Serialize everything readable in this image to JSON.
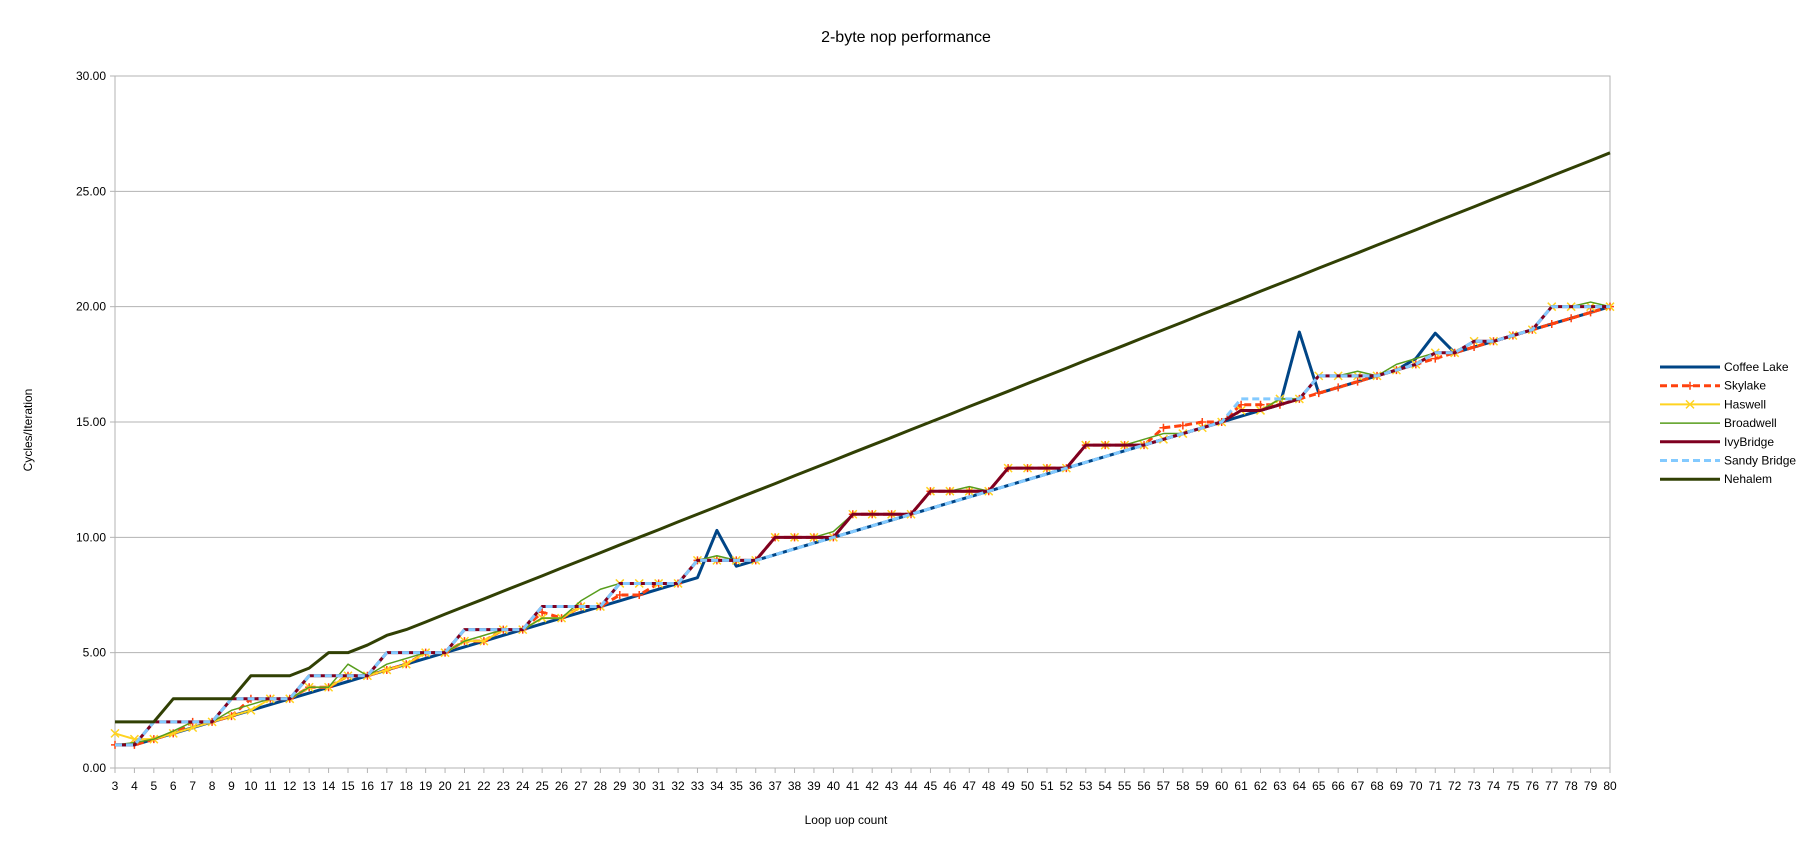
{
  "chart_data": {
    "type": "line",
    "title": "2-byte nop performance",
    "xlabel": "Loop uop count",
    "ylabel": "Cycles/Iteration",
    "ylim": [
      0,
      30
    ],
    "yticks": [
      "0.00",
      "5.00",
      "10.00",
      "15.00",
      "20.00",
      "25.00",
      "30.00"
    ],
    "x": [
      3,
      4,
      5,
      6,
      7,
      8,
      9,
      10,
      11,
      12,
      13,
      14,
      15,
      16,
      17,
      18,
      19,
      20,
      21,
      22,
      23,
      24,
      25,
      26,
      27,
      28,
      29,
      30,
      31,
      32,
      33,
      34,
      35,
      36,
      37,
      38,
      39,
      40,
      41,
      42,
      43,
      44,
      45,
      46,
      47,
      48,
      49,
      50,
      51,
      52,
      53,
      54,
      55,
      56,
      57,
      58,
      59,
      60,
      61,
      62,
      63,
      64,
      65,
      66,
      67,
      68,
      69,
      70,
      71,
      72,
      73,
      74,
      75,
      76,
      77,
      78,
      79,
      80
    ],
    "grid": "horizontal",
    "legend": "right",
    "series": [
      {
        "name": "Coffee Lake",
        "color": "#004586",
        "dash": "",
        "width": 3,
        "marker": "none",
        "values": [
          1,
          1,
          1.25,
          1.5,
          1.75,
          2,
          2.25,
          2.5,
          2.75,
          3,
          3.25,
          3.5,
          3.75,
          4,
          4.25,
          4.5,
          4.75,
          5,
          5.25,
          5.5,
          5.75,
          6,
          6.25,
          6.5,
          6.75,
          7,
          7.25,
          7.5,
          7.75,
          8,
          8.25,
          10.3,
          8.75,
          9,
          9.25,
          9.5,
          9.75,
          10,
          10.25,
          10.5,
          10.75,
          11,
          11.25,
          11.5,
          11.75,
          12,
          12.25,
          12.5,
          12.75,
          13,
          13.25,
          13.5,
          13.75,
          14,
          14.25,
          14.5,
          14.75,
          15,
          15.25,
          15.5,
          15.75,
          18.9,
          16.25,
          16.5,
          16.75,
          17,
          17.25,
          17.75,
          18.85,
          18,
          18.25,
          18.5,
          18.75,
          19,
          19.25,
          19.5,
          19.75,
          20
        ]
      },
      {
        "name": "Skylake",
        "color": "#ff420e",
        "dash": "7,4",
        "width": 3,
        "marker": "cross",
        "values": [
          1,
          1,
          1.25,
          1.5,
          2,
          2,
          2.25,
          3,
          3,
          3,
          3.5,
          3.5,
          4,
          4,
          4.25,
          4.5,
          5,
          5,
          5.5,
          5.5,
          6,
          6,
          6.75,
          6.5,
          7,
          7,
          7.5,
          7.5,
          8,
          8,
          9,
          9,
          9,
          9,
          10,
          10,
          10,
          10,
          11,
          11,
          11,
          11,
          12,
          12,
          12,
          12,
          13,
          13,
          13,
          13,
          14,
          14,
          14,
          14,
          14.75,
          14.85,
          15,
          15,
          15.75,
          15.75,
          15.75,
          16,
          16.25,
          16.5,
          16.75,
          17,
          17.25,
          17.5,
          17.75,
          18,
          18.25,
          18.5,
          18.75,
          19,
          19.25,
          19.5,
          19.75,
          20
        ]
      },
      {
        "name": "Haswell",
        "color": "#ffd320",
        "dash": "",
        "width": 2,
        "marker": "x",
        "values": [
          1.5,
          1.25,
          1.25,
          1.5,
          1.75,
          2,
          2.25,
          2.5,
          3,
          3,
          3.5,
          3.5,
          4,
          4,
          4.25,
          4.5,
          5,
          5,
          5.5,
          5.5,
          6,
          6,
          6.5,
          6.5,
          7,
          7,
          8,
          8,
          8,
          8,
          9,
          9,
          9,
          9,
          10,
          10,
          10,
          10,
          11,
          11,
          11,
          11,
          12,
          12,
          12,
          12,
          13,
          13,
          13,
          13,
          14,
          14,
          14,
          14,
          14.25,
          14.5,
          14.75,
          15,
          15.5,
          15.5,
          16,
          16,
          17,
          17,
          17,
          17,
          17.25,
          17.5,
          18,
          18,
          18.5,
          18.5,
          18.75,
          19,
          20,
          20,
          20,
          20
        ]
      },
      {
        "name": "Broadwell",
        "color": "#579d1c",
        "dash": "",
        "width": 1.5,
        "marker": "none",
        "values": [
          1,
          1.1,
          1.25,
          1.6,
          2,
          2,
          2.5,
          2.75,
          3,
          3,
          3.5,
          3.5,
          4.5,
          4,
          4.5,
          4.75,
          5,
          5,
          5.5,
          5.75,
          6,
          6,
          6.5,
          6.5,
          7.25,
          7.75,
          8,
          8,
          8,
          8,
          9,
          9.2,
          9,
          9,
          10,
          10,
          10,
          10.25,
          11,
          11,
          11,
          11,
          12,
          12,
          12.2,
          12,
          13,
          13,
          13,
          13,
          14,
          14,
          14,
          14.25,
          14.5,
          14.5,
          14.75,
          15,
          15.5,
          15.5,
          16,
          16,
          17,
          17,
          17.2,
          17,
          17.5,
          17.75,
          18,
          18,
          18.5,
          18.5,
          18.75,
          19,
          20,
          20,
          20.2,
          20
        ]
      },
      {
        "name": "IvyBridge",
        "color": "#7e0021",
        "dash": "",
        "width": 3,
        "marker": "none",
        "values": [
          1,
          1,
          2,
          2,
          2,
          2,
          3,
          3,
          3,
          3,
          4,
          4,
          4,
          4,
          5,
          5,
          5,
          5,
          6,
          6,
          6,
          6,
          7,
          7,
          7,
          7,
          8,
          8,
          8,
          8,
          9,
          9,
          9,
          9,
          10,
          10,
          10,
          10,
          11,
          11,
          11,
          11,
          12,
          12,
          12,
          12,
          13,
          13,
          13,
          13,
          14,
          14,
          14,
          14,
          14.25,
          14.5,
          14.75,
          15,
          15.5,
          15.5,
          15.75,
          16,
          17,
          17,
          17,
          17,
          17.25,
          17.5,
          18,
          18,
          18.5,
          18.5,
          18.75,
          19,
          20,
          20,
          20,
          20
        ]
      },
      {
        "name": "Sandy Bridge",
        "color": "#83caff",
        "dash": "7,4",
        "width": 3,
        "marker": "none",
        "values": [
          1,
          1,
          2,
          2,
          2,
          2,
          3,
          3,
          3,
          3,
          4,
          4,
          4,
          4,
          5,
          5,
          5,
          5,
          6,
          6,
          6,
          6,
          7,
          7,
          7,
          7,
          8,
          8,
          8,
          8,
          9,
          9,
          9,
          9,
          9.25,
          9.5,
          9.75,
          10,
          10.25,
          10.5,
          10.75,
          11,
          11.25,
          11.5,
          11.75,
          12,
          12.25,
          12.5,
          12.75,
          13,
          13.25,
          13.5,
          13.75,
          14,
          14.25,
          14.5,
          14.75,
          15,
          16,
          16,
          16,
          16,
          17,
          17,
          17,
          17,
          17.25,
          17.5,
          18,
          18,
          18.5,
          18.5,
          18.75,
          19,
          20,
          20,
          20,
          20
        ]
      },
      {
        "name": "Nehalem",
        "color": "#314004",
        "dash": "",
        "width": 3,
        "marker": "none",
        "values": [
          2,
          2,
          2,
          3,
          3,
          3,
          3,
          4,
          4,
          4,
          4.33,
          5,
          5,
          5.33,
          5.75,
          6,
          6.33,
          6.67,
          7,
          7.33,
          7.67,
          8,
          8.33,
          8.67,
          9,
          9.33,
          9.67,
          10,
          10.33,
          10.67,
          11,
          11.33,
          11.67,
          12,
          12.33,
          12.67,
          13,
          13.33,
          13.67,
          14,
          14.33,
          14.67,
          15,
          15.33,
          15.67,
          16,
          16.33,
          16.67,
          17,
          17.33,
          17.67,
          18,
          18.33,
          18.67,
          19,
          19.33,
          19.67,
          20,
          20.33,
          20.67,
          21,
          21.33,
          21.67,
          22,
          22.33,
          22.67,
          23,
          23.33,
          23.67,
          24,
          24.33,
          24.67,
          25,
          25.33,
          25.67,
          26,
          26.33,
          26.67
        ]
      }
    ]
  }
}
